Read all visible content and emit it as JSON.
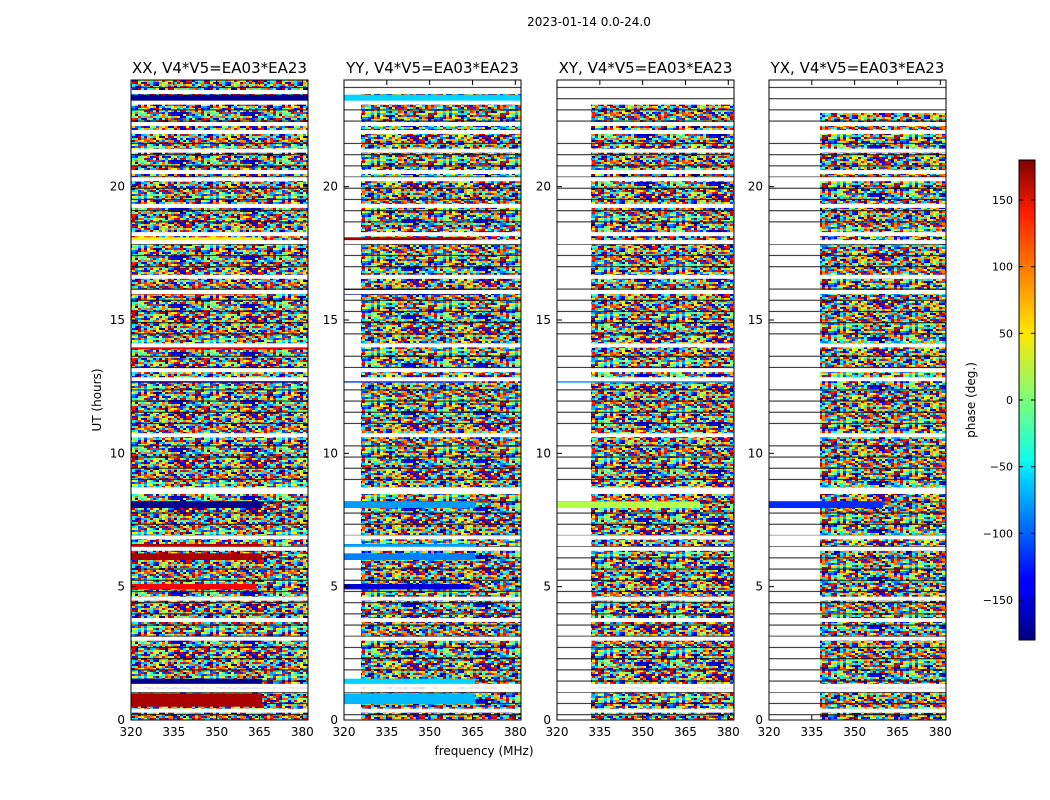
{
  "chart_data": {
    "type": "heatmap",
    "title": "2023-01-14 0.0-24.0",
    "xlabel": "frequency (MHz)",
    "ylabel": "UT (hours)",
    "xlim": [
      320,
      382
    ],
    "ylim": [
      0,
      24
    ],
    "x_ticks": [
      "320",
      "335",
      "350",
      "365",
      "380"
    ],
    "x_tick_values": [
      320,
      335,
      350,
      365,
      380
    ],
    "y_ticks": [
      "0",
      "5",
      "10",
      "15",
      "20"
    ],
    "y_tick_values": [
      0,
      5,
      10,
      15,
      20
    ],
    "panels": [
      {
        "title": "XX, V4*V5=EA03*EA23",
        "polarization": "XX"
      },
      {
        "title": "YY, V4*V5=EA03*EA23",
        "polarization": "YY"
      },
      {
        "title": "XY, V4*V5=EA03*EA23",
        "polarization": "XY"
      },
      {
        "title": "YX, V4*V5=EA03*EA23",
        "polarization": "YX"
      }
    ],
    "colorbar": {
      "label": "phase (deg.)",
      "colormap": "jet",
      "range": [
        -180,
        180
      ],
      "ticks": [
        "150",
        "100",
        "50",
        "0",
        "−50",
        "−100",
        "−150"
      ],
      "tick_values": [
        150,
        100,
        50,
        0,
        -50,
        -100,
        -150
      ]
    },
    "flagged_hours": [
      0.35,
      1.12,
      1.28,
      3.05,
      3.75,
      4.55,
      6.42,
      6.85,
      8.55,
      8.65,
      10.68,
      12.78,
      13.12,
      14.05,
      16.05,
      16.62,
      17.92,
      18.22,
      19.28,
      20.28,
      20.55,
      21.35,
      22.05,
      22.35,
      23.15,
      23.55
    ],
    "coherent_bands": [
      {
        "panel": 0,
        "start": 0.5,
        "end": 1.0,
        "phase": 165,
        "f_end": 366
      },
      {
        "panel": 0,
        "start": 1.3,
        "end": 1.55,
        "phase": -175,
        "f_end": 366
      },
      {
        "panel": 0,
        "start": 4.9,
        "end": 5.1,
        "phase": 135,
        "f_end": 364
      },
      {
        "panel": 0,
        "start": 6.0,
        "end": 6.25,
        "phase": 165,
        "f_end": 366
      },
      {
        "panel": 0,
        "start": 6.45,
        "end": 6.6,
        "phase": 160,
        "f_end": 366
      },
      {
        "panel": 0,
        "start": 7.95,
        "end": 8.2,
        "phase": -175,
        "f_end": 366
      },
      {
        "panel": 0,
        "start": 12.65,
        "end": 12.85,
        "phase": -170,
        "f_end": 380
      },
      {
        "panel": 0,
        "start": 13.9,
        "end": 14.05,
        "phase": 140,
        "f_end": 382
      },
      {
        "panel": 0,
        "start": 15.95,
        "end": 16.15,
        "phase": 120,
        "f_end": 366
      },
      {
        "panel": 0,
        "start": 17.85,
        "end": 18.1,
        "phase": 50,
        "f_end": 366
      },
      {
        "panel": 0,
        "start": 23.2,
        "end": 23.45,
        "phase": -175,
        "f_end": 382
      },
      {
        "panel": 1,
        "start": 0.6,
        "end": 1.0,
        "phase": -70,
        "f_end": 366
      },
      {
        "panel": 1,
        "start": 1.3,
        "end": 1.55,
        "phase": -60,
        "f_end": 366
      },
      {
        "panel": 1,
        "start": 4.9,
        "end": 5.1,
        "phase": -150,
        "f_end": 364
      },
      {
        "panel": 1,
        "start": 6.0,
        "end": 6.25,
        "phase": -90,
        "f_end": 366
      },
      {
        "panel": 1,
        "start": 6.45,
        "end": 6.6,
        "phase": -80,
        "f_end": 366
      },
      {
        "panel": 1,
        "start": 7.95,
        "end": 8.2,
        "phase": -80,
        "f_end": 366
      },
      {
        "panel": 1,
        "start": 12.65,
        "end": 12.85,
        "phase": -110,
        "f_end": 366
      },
      {
        "panel": 1,
        "start": 15.95,
        "end": 16.15,
        "phase": -170,
        "f_end": 366
      },
      {
        "panel": 1,
        "start": 17.85,
        "end": 18.1,
        "phase": 170,
        "f_end": 366
      },
      {
        "panel": 1,
        "start": 23.2,
        "end": 23.45,
        "phase": -60,
        "f_end": 382
      },
      {
        "panel": 2,
        "start": 7.95,
        "end": 8.2,
        "phase": 20,
        "f_end": 370
      },
      {
        "panel": 2,
        "start": 12.65,
        "end": 12.85,
        "phase": -80,
        "f_end": 382
      },
      {
        "panel": 3,
        "start": 7.95,
        "end": 8.2,
        "phase": -120,
        "f_end": 360
      }
    ]
  }
}
